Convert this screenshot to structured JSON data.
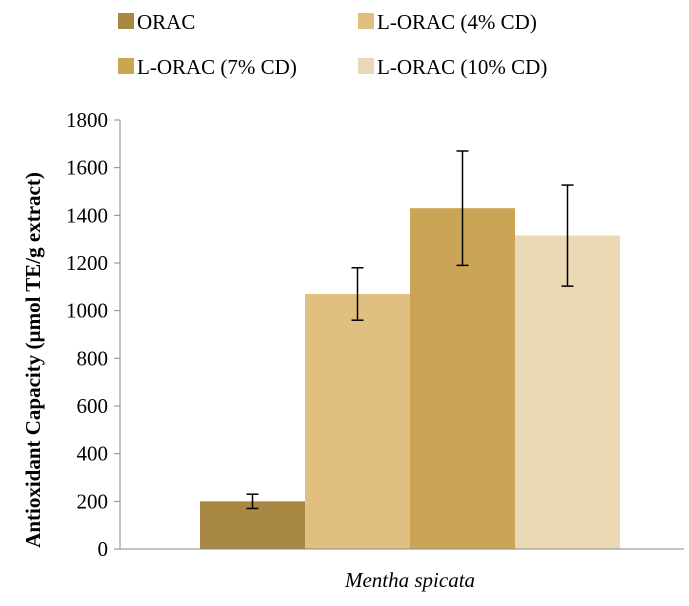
{
  "chart_data": {
    "type": "bar",
    "categories": [
      "Mentha spicata"
    ],
    "series": [
      {
        "name": "ORAC",
        "values": [
          200
        ],
        "error": [
          30
        ],
        "color": "#A98843"
      },
      {
        "name": "L-ORAC (4% CD)",
        "values": [
          1070
        ],
        "error": [
          110
        ],
        "color": "#E0BF80"
      },
      {
        "name": "L-ORAC (7% CD)",
        "values": [
          1430
        ],
        "error": [
          240
        ],
        "color": "#CBA556"
      },
      {
        "name": "L-ORAC (10% CD)",
        "values": [
          1315
        ],
        "error": [
          212
        ],
        "color": "#EBD8B4"
      }
    ],
    "title": "",
    "xlabel": "",
    "ylabel": "Antioxidant Capacity (µmol TE/g  extract)",
    "ylim": [
      0,
      1800
    ],
    "yticks": [
      "0",
      "200",
      "400",
      "600",
      "800",
      "1000",
      "1200",
      "1400",
      "1600",
      "1800"
    ],
    "grid": false,
    "legend_position": "top"
  }
}
